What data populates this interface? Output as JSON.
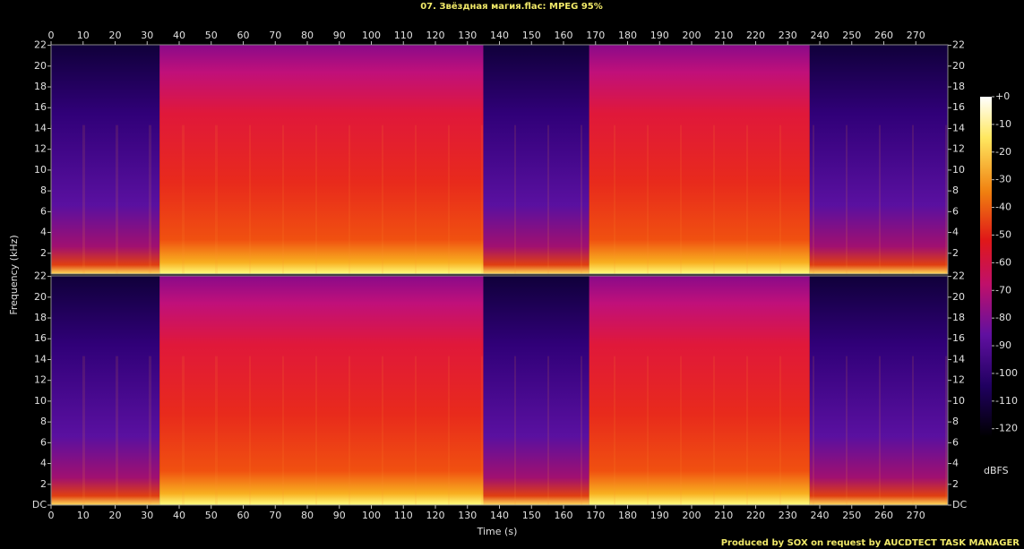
{
  "chart_data": {
    "type": "spectrogram",
    "title": "07. Звёздная магия.flac: MPEG 95%",
    "xlabel": "Time (s)",
    "ylabel": "Frequency (kHz)",
    "xlim": [
      0,
      280
    ],
    "xticks": [
      0,
      10,
      20,
      30,
      40,
      50,
      60,
      70,
      80,
      90,
      100,
      110,
      120,
      130,
      140,
      150,
      160,
      170,
      180,
      190,
      200,
      210,
      220,
      230,
      240,
      250,
      260,
      270
    ],
    "ylim": [
      0,
      22.05
    ],
    "yticks": [
      {
        "value": 0,
        "label": "DC"
      },
      2,
      4,
      6,
      8,
      10,
      12,
      14,
      16,
      18,
      20,
      22
    ],
    "colorbar_label": "dBFS",
    "clim": [
      -123,
      0
    ],
    "cticks": [
      {
        "value": 0,
        "label": "+0"
      },
      -10,
      -20,
      -30,
      -40,
      -50,
      -60,
      -70,
      -80,
      -90,
      -100,
      -110,
      -120
    ],
    "footer": "Produced by SOX on request by AUCDTECT TASK MANAGER"
  }
}
